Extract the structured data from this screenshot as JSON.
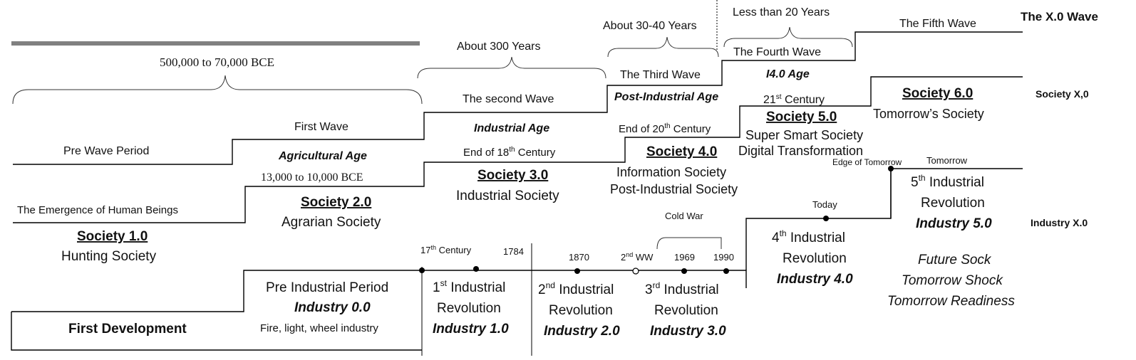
{
  "labels": {
    "x0_wave": "The X.0 Wave",
    "society_x0": "Society X,0",
    "industry_x0": "Industry X.0",
    "span_pre": "500,000 to 70,000 BCE",
    "span_300": "About 300 Years",
    "span_3040": "About 30-40 Years",
    "span_20": "Less than 20 Years",
    "fifth_wave": "The Fifth Wave",
    "fourth_wave": "The Fourth Wave",
    "i40_age": "I4.0 Age",
    "third_wave": "The Third Wave",
    "post_industrial_age": "Post-Industrial Age",
    "second_wave": "The second Wave",
    "industrial_age": "Industrial Age",
    "first_wave": "First Wave",
    "agricultural_age": "Agricultural Age",
    "pre_wave": "Pre Wave Period",
    "span_13000": "13,000 to 10,000 BCE",
    "emergence": "The Emergence of Human Beings",
    "century_21": "21",
    "century_21_sup": "st",
    "century_21_rest": " Century",
    "end_20_a": "End of 20",
    "end_20_sup": "th",
    "end_20_b": " Century",
    "end_18_a": "End of 18",
    "end_18_sup": "th",
    "end_18_b": " Century",
    "century_17": "17",
    "century_17_sup": "th",
    "century_17_rest": " Century",
    "ww2": "2",
    "ww2_sup": "nd",
    "ww2_rest": " WW",
    "cold_war": "Cold War",
    "today": "Today",
    "tomorrow": "Tomorrow",
    "edge_tomorrow": "Edge of Tomorrow",
    "y1784": "1784",
    "y1870": "1870",
    "y1969": "1969",
    "y1990": "1990"
  },
  "societies": {
    "s1_title": "Society 1.0",
    "s1_name": "Hunting Society",
    "s2_title": "Society 2.0",
    "s2_name": "Agrarian Society",
    "s3_title": "Society 3.0",
    "s3_name": "Industrial Society",
    "s4_title": "Society 4.0",
    "s4_name1": "Information Society",
    "s4_name2": "Post-Industrial Society",
    "s5_title": "Society 5.0",
    "s5_name1": "Super Smart Society",
    "s5_name2": "Digital Transformation",
    "s6_title": "Society 6.0",
    "s6_name": "Tomorrow’s Society"
  },
  "industry": {
    "first_dev": "First Development",
    "pre_ind": "Pre Industrial Period",
    "i00": "Industry 0.0",
    "fire": "Fire, light, wheel industry",
    "r1_num": "1",
    "r1_sup": "st",
    "r1_a": " Industrial",
    "r1_b": "Revolution",
    "i10": "Industry 1.0",
    "r2_num": "2",
    "r2_sup": "nd",
    "r2_a": "  Industrial",
    "r2_b": "Revolution",
    "i20": "Industry 2.0",
    "r3_num": "3",
    "r3_sup": "rd",
    "r3_a": "  Industrial",
    "r3_b": "Revolution",
    "i30": "Industry 3.0",
    "r4_num": "4",
    "r4_sup": "th",
    "r4_a": "   Industrial",
    "r4_b": "Revolution",
    "i40": "Industry 4.0",
    "r5_num": "5",
    "r5_sup": "th",
    "r5_a": "   Industrial",
    "r5_b": "Revolution",
    "i50": "Industry 5.0",
    "future1": "Future Sock",
    "future2": "Tomorrow Shock",
    "future3": "Tomorrow Readiness"
  }
}
